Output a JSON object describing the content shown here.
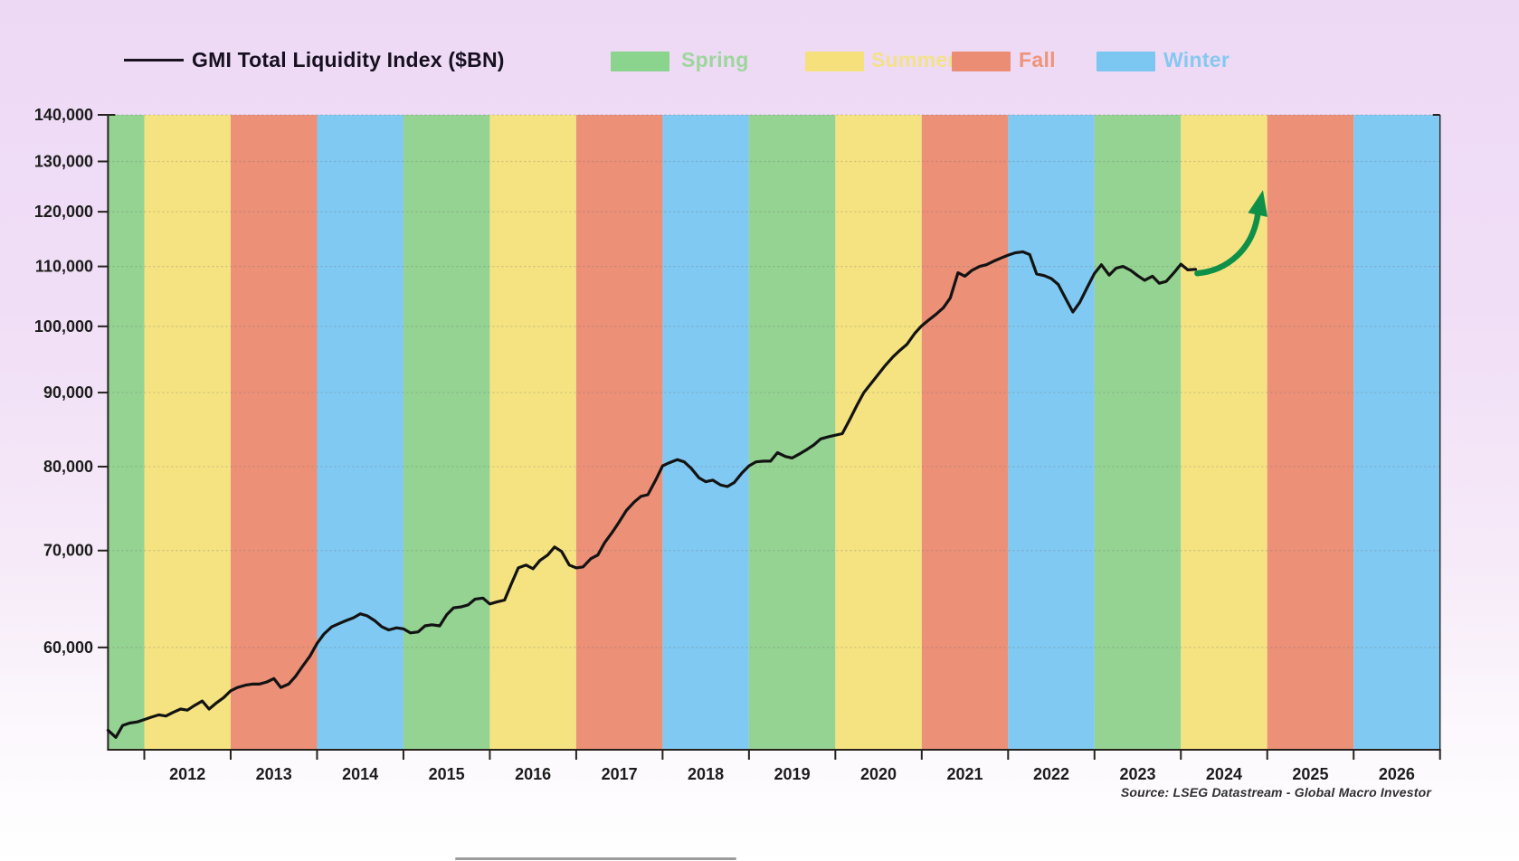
{
  "legend": {
    "series_label": "GMI Total Liquidity Index ($BN)",
    "seasons": [
      {
        "label": "Spring",
        "swatch_color": "#8bd48d",
        "text_color": "#9dd69c"
      },
      {
        "label": "Summer",
        "swatch_color": "#f6e07c",
        "text_color": "#f3e18a"
      },
      {
        "label": "Fall",
        "swatch_color": "#eb8d74",
        "text_color": "#ef9478"
      },
      {
        "label": "Winter",
        "swatch_color": "#7cc6f2",
        "text_color": "#86c8f0"
      }
    ]
  },
  "source": "Source: LSEG Datastream - Global Macro Investor",
  "colors": {
    "background_top": "#eed9f5",
    "band_spring": "#94d392",
    "band_summer": "#f5e381",
    "band_fall": "#ec9078",
    "band_winter": "#80c9f2",
    "series_line": "#131313",
    "axis": "#26231f",
    "gridline": "#6b6b6b",
    "arrow_green": "#0e9049",
    "tick_label": "#1c1c1c"
  },
  "chart_data": {
    "type": "line",
    "title": "GMI Total Liquidity Index ($BN)",
    "y_scale": "log",
    "ylim": [
      51000,
      140000
    ],
    "y_ticks": [
      60000,
      70000,
      80000,
      90000,
      100000,
      110000,
      120000,
      130000,
      140000
    ],
    "y_tick_labels": [
      "60,000",
      "70,000",
      "80,000",
      "90,000",
      "100,000",
      "110,000",
      "120,000",
      "130,000",
      "140,000"
    ],
    "x_years": [
      2012,
      2013,
      2014,
      2015,
      2016,
      2017,
      2018,
      2019,
      2020,
      2021,
      2022,
      2023,
      2024,
      2025,
      2026
    ],
    "x_range": [
      2011.58,
      2027.0
    ],
    "grid": "horizontal-dotted",
    "legend_position": "top",
    "year_season_cycle_mod4": [
      "Summer",
      "Fall",
      "Winter",
      "Spring"
    ],
    "series": [
      {
        "name": "GMI Total Liquidity Index ($BN)",
        "points": [
          [
            2011.58,
            52600
          ],
          [
            2011.67,
            52000
          ],
          [
            2011.75,
            53000
          ],
          [
            2011.83,
            53200
          ],
          [
            2011.92,
            53300
          ],
          [
            2012.0,
            53500
          ],
          [
            2012.08,
            53700
          ],
          [
            2012.17,
            53900
          ],
          [
            2012.25,
            53800
          ],
          [
            2012.33,
            54100
          ],
          [
            2012.42,
            54400
          ],
          [
            2012.5,
            54300
          ],
          [
            2012.58,
            54700
          ],
          [
            2012.67,
            55100
          ],
          [
            2012.75,
            54400
          ],
          [
            2012.83,
            54900
          ],
          [
            2012.92,
            55400
          ],
          [
            2013.0,
            56000
          ],
          [
            2013.08,
            56300
          ],
          [
            2013.17,
            56500
          ],
          [
            2013.25,
            56600
          ],
          [
            2013.33,
            56600
          ],
          [
            2013.42,
            56800
          ],
          [
            2013.5,
            57100
          ],
          [
            2013.58,
            56300
          ],
          [
            2013.67,
            56600
          ],
          [
            2013.75,
            57300
          ],
          [
            2013.83,
            58200
          ],
          [
            2013.92,
            59200
          ],
          [
            2014.0,
            60400
          ],
          [
            2014.08,
            61300
          ],
          [
            2014.17,
            62000
          ],
          [
            2014.25,
            62300
          ],
          [
            2014.33,
            62600
          ],
          [
            2014.42,
            62900
          ],
          [
            2014.5,
            63300
          ],
          [
            2014.58,
            63100
          ],
          [
            2014.67,
            62600
          ],
          [
            2014.75,
            62000
          ],
          [
            2014.83,
            61700
          ],
          [
            2014.92,
            61900
          ],
          [
            2015.0,
            61800
          ],
          [
            2015.08,
            61400
          ],
          [
            2015.17,
            61500
          ],
          [
            2015.25,
            62100
          ],
          [
            2015.33,
            62200
          ],
          [
            2015.42,
            62100
          ],
          [
            2015.5,
            63200
          ],
          [
            2015.58,
            63900
          ],
          [
            2015.67,
            64000
          ],
          [
            2015.75,
            64200
          ],
          [
            2015.83,
            64800
          ],
          [
            2015.92,
            64900
          ],
          [
            2016.0,
            64300
          ],
          [
            2016.08,
            64500
          ],
          [
            2016.17,
            64700
          ],
          [
            2016.25,
            66400
          ],
          [
            2016.33,
            68100
          ],
          [
            2016.42,
            68400
          ],
          [
            2016.5,
            68000
          ],
          [
            2016.58,
            68900
          ],
          [
            2016.67,
            69500
          ],
          [
            2016.75,
            70400
          ],
          [
            2016.83,
            69900
          ],
          [
            2016.92,
            68400
          ],
          [
            2017.0,
            68100
          ],
          [
            2017.08,
            68200
          ],
          [
            2017.17,
            69100
          ],
          [
            2017.25,
            69500
          ],
          [
            2017.33,
            70900
          ],
          [
            2017.42,
            72100
          ],
          [
            2017.5,
            73300
          ],
          [
            2017.58,
            74600
          ],
          [
            2017.67,
            75600
          ],
          [
            2017.75,
            76300
          ],
          [
            2017.83,
            76500
          ],
          [
            2017.92,
            78300
          ],
          [
            2018.0,
            80100
          ],
          [
            2018.08,
            80500
          ],
          [
            2018.17,
            80900
          ],
          [
            2018.25,
            80600
          ],
          [
            2018.33,
            79800
          ],
          [
            2018.42,
            78600
          ],
          [
            2018.5,
            78100
          ],
          [
            2018.58,
            78300
          ],
          [
            2018.67,
            77700
          ],
          [
            2018.75,
            77500
          ],
          [
            2018.83,
            78000
          ],
          [
            2018.92,
            79200
          ],
          [
            2019.0,
            80100
          ],
          [
            2019.08,
            80600
          ],
          [
            2019.17,
            80700
          ],
          [
            2019.25,
            80700
          ],
          [
            2019.33,
            81800
          ],
          [
            2019.42,
            81300
          ],
          [
            2019.5,
            81100
          ],
          [
            2019.58,
            81600
          ],
          [
            2019.67,
            82200
          ],
          [
            2019.75,
            82800
          ],
          [
            2019.83,
            83600
          ],
          [
            2019.92,
            83900
          ],
          [
            2020.0,
            84100
          ],
          [
            2020.08,
            84300
          ],
          [
            2020.17,
            86300
          ],
          [
            2020.25,
            88200
          ],
          [
            2020.33,
            90000
          ],
          [
            2020.42,
            91400
          ],
          [
            2020.5,
            92700
          ],
          [
            2020.58,
            94000
          ],
          [
            2020.67,
            95300
          ],
          [
            2020.75,
            96300
          ],
          [
            2020.83,
            97200
          ],
          [
            2020.92,
            98900
          ],
          [
            2021.0,
            100100
          ],
          [
            2021.08,
            101000
          ],
          [
            2021.17,
            102000
          ],
          [
            2021.25,
            103000
          ],
          [
            2021.33,
            104600
          ],
          [
            2021.42,
            108900
          ],
          [
            2021.5,
            108300
          ],
          [
            2021.58,
            109300
          ],
          [
            2021.67,
            110000
          ],
          [
            2021.75,
            110300
          ],
          [
            2021.83,
            110900
          ],
          [
            2021.92,
            111500
          ],
          [
            2022.0,
            112000
          ],
          [
            2022.08,
            112400
          ],
          [
            2022.17,
            112600
          ],
          [
            2022.25,
            112100
          ],
          [
            2022.33,
            108700
          ],
          [
            2022.42,
            108400
          ],
          [
            2022.5,
            107900
          ],
          [
            2022.58,
            106900
          ],
          [
            2022.67,
            104400
          ],
          [
            2022.75,
            102300
          ],
          [
            2022.83,
            103900
          ],
          [
            2022.92,
            106500
          ],
          [
            2023.0,
            108800
          ],
          [
            2023.08,
            110300
          ],
          [
            2023.17,
            108500
          ],
          [
            2023.25,
            109700
          ],
          [
            2023.33,
            110000
          ],
          [
            2023.42,
            109300
          ],
          [
            2023.5,
            108400
          ],
          [
            2023.58,
            107600
          ],
          [
            2023.67,
            108300
          ],
          [
            2023.75,
            107100
          ],
          [
            2023.83,
            107400
          ],
          [
            2023.92,
            108900
          ],
          [
            2024.0,
            110400
          ],
          [
            2024.08,
            109400
          ],
          [
            2024.17,
            109500
          ]
        ]
      }
    ],
    "annotation_arrow": {
      "meaning": "projected liquidity rise",
      "from": [
        2024.19,
        108800
      ],
      "to": [
        2024.95,
        124200
      ],
      "color": "#0e9049"
    }
  }
}
